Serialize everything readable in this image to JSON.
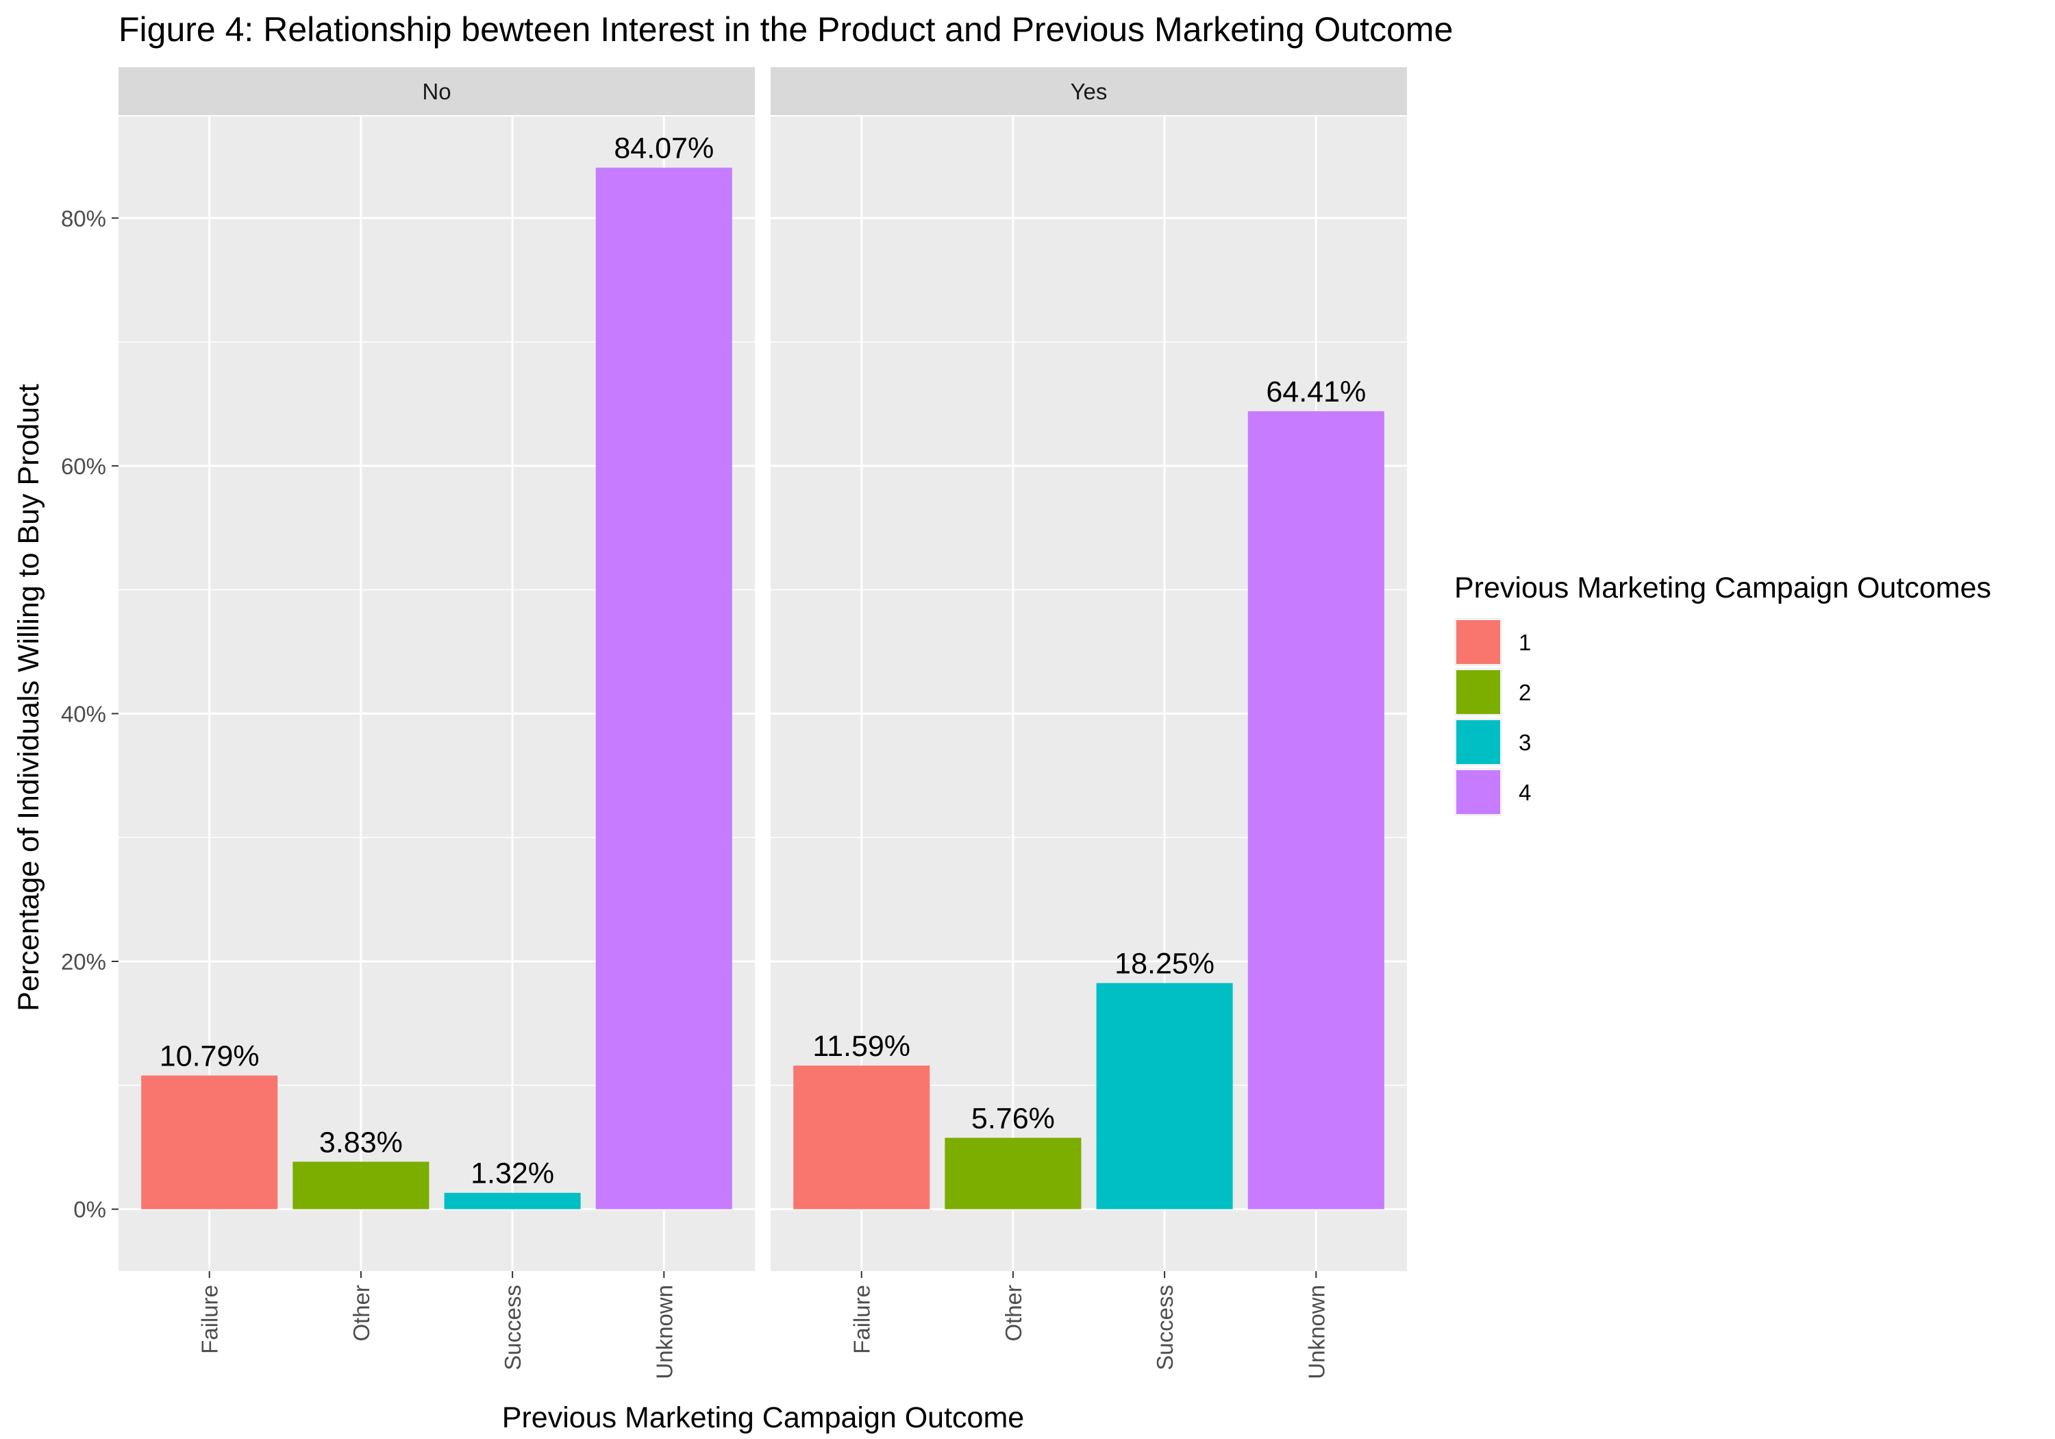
{
  "chart_data": {
    "type": "bar",
    "title": "Figure 4: Relationship bewteen Interest in the Product and Previous Marketing Outcome",
    "xlabel": "Previous Marketing Campaign Outcome",
    "ylabel": "Percentage of Individuals Willing to Buy Product",
    "ylim": [
      -5,
      88.2
    ],
    "yticks": [
      0,
      20,
      40,
      60,
      80
    ],
    "ytick_labels": [
      "0%",
      "20%",
      "40%",
      "60%",
      "80%"
    ],
    "grid": true,
    "categories": [
      "Failure",
      "Other",
      "Success",
      "Unknown"
    ],
    "facets": [
      {
        "name": "No",
        "values": [
          10.79,
          3.83,
          1.32,
          84.07
        ],
        "labels": [
          "10.79%",
          "3.83%",
          "1.32%",
          "84.07%"
        ]
      },
      {
        "name": "Yes",
        "values": [
          11.59,
          5.76,
          18.25,
          64.41
        ],
        "labels": [
          "11.59%",
          "5.76%",
          "18.25%",
          "64.41%"
        ]
      }
    ],
    "legend": {
      "title": "Previous Marketing Campaign Outcomes",
      "position": "right",
      "items": [
        {
          "label": "1",
          "color": "#F8766D"
        },
        {
          "label": "2",
          "color": "#7CAE00"
        },
        {
          "label": "3",
          "color": "#00BFC4"
        },
        {
          "label": "4",
          "color": "#C77CFF"
        }
      ]
    },
    "colors": [
      "#F8766D",
      "#7CAE00",
      "#00BFC4",
      "#C77CFF"
    ]
  }
}
